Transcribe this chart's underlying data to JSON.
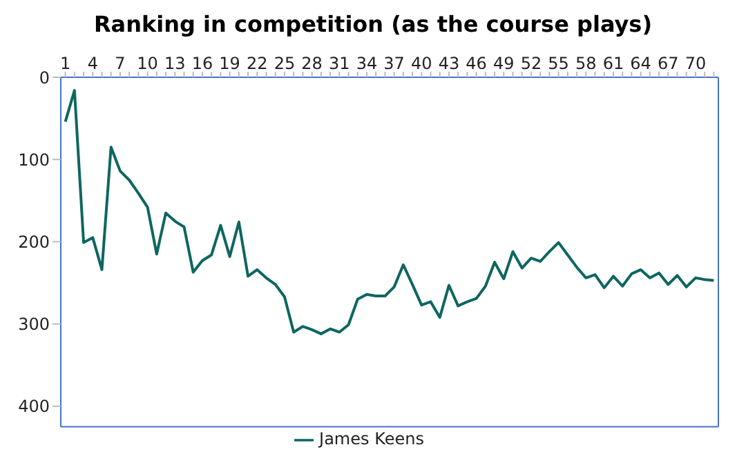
{
  "chart_data": {
    "type": "line",
    "title": "Ranking in competition (as the course plays)",
    "categories": [
      "1",
      null,
      null,
      "4",
      null,
      null,
      "7",
      null,
      null,
      "10",
      null,
      null,
      "13",
      null,
      null,
      "16",
      null,
      null,
      "19",
      null,
      null,
      "22",
      null,
      null,
      "25",
      null,
      null,
      "28",
      null,
      null,
      "31",
      null,
      null,
      "34",
      null,
      null,
      "37",
      null,
      null,
      "40",
      null,
      null,
      "43",
      null,
      null,
      "46",
      null,
      null,
      "49",
      null,
      null,
      "52",
      null,
      null,
      "55",
      null,
      null,
      "58",
      null,
      null,
      "61",
      null,
      null,
      "64",
      null,
      null,
      "67",
      null,
      null,
      "70",
      null,
      null
    ],
    "series": [
      {
        "name": "James Keens",
        "color": "#0e6660",
        "values": [
          54,
          16,
          201,
          195,
          234,
          85,
          114,
          125,
          141,
          158,
          215,
          165,
          175,
          182,
          237,
          223,
          216,
          180,
          218,
          176,
          242,
          234,
          244,
          252,
          267,
          310,
          303,
          307,
          312,
          306,
          310,
          301,
          270,
          264,
          266,
          266,
          255,
          228,
          252,
          277,
          273,
          292,
          253,
          278,
          273,
          269,
          254,
          225,
          245,
          212,
          232,
          220,
          224,
          212,
          201,
          216,
          231,
          244,
          240,
          256,
          242,
          254,
          239,
          234,
          244,
          238,
          252,
          241,
          255,
          244,
          246,
          247
        ]
      }
    ],
    "ylim": [
      425,
      0
    ],
    "yticks": [
      0,
      100,
      200,
      300,
      400
    ],
    "legend": "bottom",
    "marker": "none",
    "line_style": "solid"
  }
}
